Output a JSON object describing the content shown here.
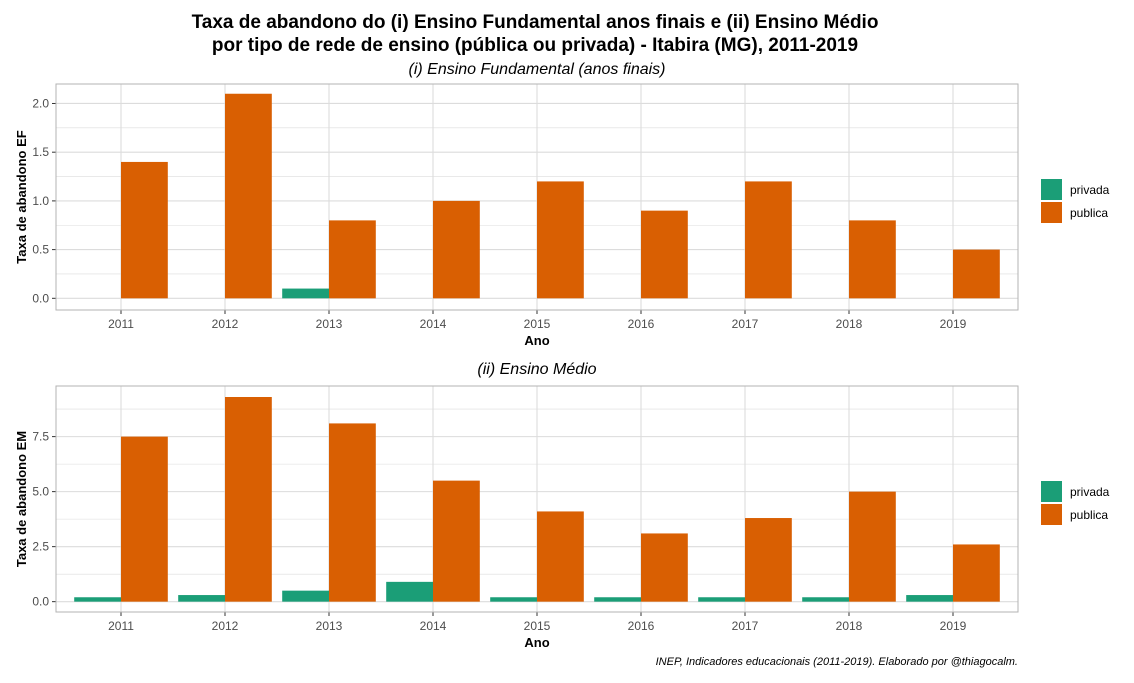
{
  "title": {
    "line1": "Taxa de abandono do (i) Ensino Fundamental anos finais e (ii) Ensino Médio",
    "line2": "por tipo de rede de ensino (pública ou privada) - Itabira (MG), 2011-2019"
  },
  "caption": "INEP, Indicadores educacionais (2011-2019). Elaborado por @thiagocalm.",
  "colors": {
    "privada": "#1b9e77",
    "publica": "#d95f02",
    "grid": "#dcdcdc",
    "border": "#b3b3b3",
    "tick_text": "#4d4d4d"
  },
  "legend": [
    {
      "key": "privada",
      "label": "privada"
    },
    {
      "key": "publica",
      "label": "publica"
    }
  ],
  "chart_data": [
    {
      "type": "bar",
      "title": "(i) Ensino Fundamental (anos finais)",
      "xlabel": "Ano",
      "ylabel": "Taxa de abandono EF",
      "categories": [
        "2011",
        "2012",
        "2013",
        "2014",
        "2015",
        "2016",
        "2017",
        "2018",
        "2019"
      ],
      "series": [
        {
          "name": "privada",
          "values": [
            0,
            0,
            0.1,
            0,
            0,
            0,
            0,
            0,
            0
          ]
        },
        {
          "name": "publica",
          "values": [
            1.4,
            2.1,
            0.8,
            1.0,
            1.2,
            0.9,
            1.2,
            0.8,
            0.5
          ]
        }
      ],
      "ylim": [
        -0.12,
        2.2
      ],
      "yticks": [
        0.0,
        0.5,
        1.0,
        1.5,
        2.0
      ],
      "ytick_labels": [
        "0.0",
        "0.5",
        "1.0",
        "1.5",
        "2.0"
      ],
      "grid": true,
      "legend_position": "right"
    },
    {
      "type": "bar",
      "title": "(ii) Ensino Médio",
      "xlabel": "Ano",
      "ylabel": "Taxa de abandono EM",
      "categories": [
        "2011",
        "2012",
        "2013",
        "2014",
        "2015",
        "2016",
        "2017",
        "2018",
        "2019"
      ],
      "series": [
        {
          "name": "privada",
          "values": [
            0.2,
            0.3,
            0.5,
            0.9,
            0.2,
            0.2,
            0.2,
            0.2,
            0.3
          ]
        },
        {
          "name": "publica",
          "values": [
            7.5,
            9.3,
            8.1,
            5.5,
            4.1,
            3.1,
            3.8,
            5.0,
            2.6
          ]
        }
      ],
      "ylim": [
        -0.47,
        9.8
      ],
      "yticks": [
        0.0,
        2.5,
        5.0,
        7.5
      ],
      "ytick_labels": [
        "0.0",
        "2.5",
        "5.0",
        "7.5"
      ],
      "grid": true,
      "legend_position": "right"
    }
  ]
}
